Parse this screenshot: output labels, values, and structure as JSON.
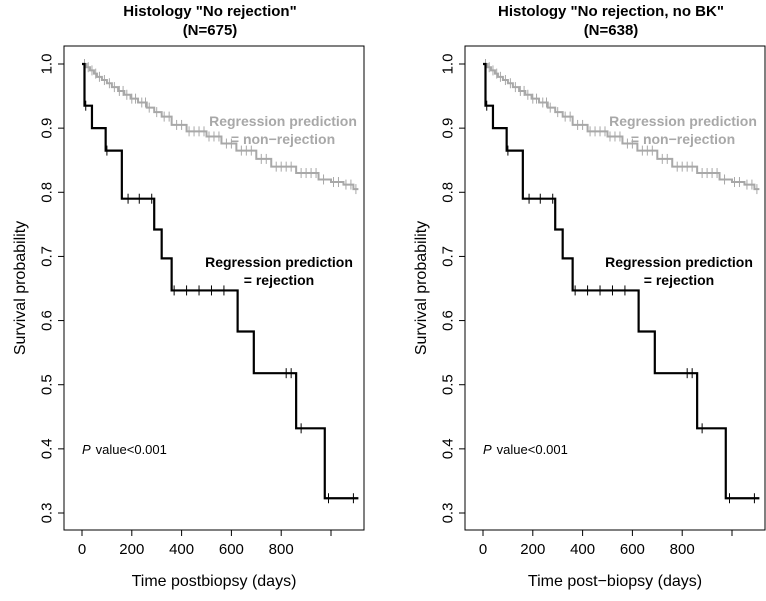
{
  "chart_data": [
    {
      "type": "line",
      "title": "Histology \"No rejection\"",
      "subtitle": "(N=675)",
      "xlabel": "Time postbiopsy (days)",
      "ylabel": "Survival probability",
      "xlim": [
        -20,
        1180
      ],
      "ylim": [
        0.28,
        1.02
      ],
      "x_ticks": [
        0,
        200,
        400,
        600,
        800,
        1000
      ],
      "x_tick_labels": [
        "0",
        "200",
        "400",
        "600",
        "800",
        ""
      ],
      "y_ticks": [
        0.3,
        0.4,
        0.5,
        0.6,
        0.7,
        0.8,
        0.9,
        1.0
      ],
      "y_tick_labels": [
        "0.3",
        "0.4",
        "0.5",
        "0.6",
        "0.7",
        "0.8",
        "0.9",
        "1.0"
      ],
      "annotations": {
        "non_rejection": [
          "Regression prediction",
          "= non−rejection"
        ],
        "rejection": [
          "Regression prediction",
          "= rejection"
        ],
        "p_italic": "P",
        "p_value": "value<0.001"
      },
      "series": [
        {
          "name": "Regression prediction = non-rejection",
          "color": "#a8a8a8",
          "step_times": [
            5,
            18,
            32,
            48,
            60,
            80,
            100,
            120,
            145,
            170,
            195,
            225,
            260,
            290,
            320,
            360,
            420,
            500,
            560,
            620,
            700,
            760,
            860,
            950,
            1000,
            1050,
            1090
          ],
          "step_values": [
            1.0,
            0.995,
            0.99,
            0.985,
            0.98,
            0.975,
            0.97,
            0.964,
            0.958,
            0.952,
            0.946,
            0.94,
            0.932,
            0.925,
            0.918,
            0.905,
            0.895,
            0.887,
            0.876,
            0.865,
            0.852,
            0.84,
            0.83,
            0.82,
            0.816,
            0.812,
            0.805
          ],
          "end_time": 1110,
          "censor_times": [
            10,
            25,
            40,
            55,
            70,
            90,
            110,
            130,
            150,
            165,
            180,
            200,
            215,
            240,
            255,
            270,
            300,
            330,
            350,
            380,
            400,
            430,
            450,
            470,
            490,
            510,
            530,
            550,
            580,
            600,
            640,
            660,
            680,
            720,
            740,
            780,
            800,
            820,
            840,
            880,
            900,
            920,
            940,
            970,
            1010,
            1030,
            1060,
            1080,
            1100
          ]
        },
        {
          "name": "Regression prediction = rejection",
          "color": "#000000",
          "step_times": [
            0,
            10,
            40,
            95,
            160,
            290,
            320,
            360,
            625,
            690,
            860,
            975
          ],
          "step_values": [
            1.0,
            0.935,
            0.9,
            0.865,
            0.79,
            0.742,
            0.697,
            0.647,
            0.583,
            0.518,
            0.432,
            0.323
          ],
          "end_time": 1110,
          "censor_times": [
            15,
            100,
            185,
            230,
            280,
            370,
            420,
            470,
            520,
            570,
            820,
            840,
            880,
            990,
            1090
          ]
        }
      ]
    },
    {
      "type": "line",
      "title": "Histology \"No rejection, no BK\"",
      "subtitle": "(N=638)",
      "xlabel": "Time post−biopsy (days)",
      "ylabel": "Survival probability",
      "xlim": [
        -20,
        1180
      ],
      "ylim": [
        0.28,
        1.02
      ],
      "x_ticks": [
        0,
        200,
        400,
        600,
        800,
        1000
      ],
      "x_tick_labels": [
        "0",
        "200",
        "400",
        "600",
        "800",
        ""
      ],
      "y_ticks": [
        0.3,
        0.4,
        0.5,
        0.6,
        0.7,
        0.8,
        0.9,
        1.0
      ],
      "y_tick_labels": [
        "0.3",
        "0.4",
        "0.5",
        "0.6",
        "0.7",
        "0.8",
        "0.9",
        "1.0"
      ],
      "annotations": {
        "non_rejection": [
          "Regression prediction",
          "= non−rejection"
        ],
        "rejection": [
          "Regression prediction",
          "= rejection"
        ],
        "p_italic": "P",
        "p_value": "value<0.001"
      },
      "series": [
        {
          "name": "Regression prediction = non-rejection",
          "color": "#a8a8a8",
          "step_times": [
            5,
            18,
            32,
            48,
            60,
            80,
            100,
            120,
            145,
            170,
            195,
            225,
            260,
            290,
            320,
            360,
            420,
            500,
            560,
            620,
            700,
            760,
            860,
            950,
            1000,
            1050,
            1090
          ],
          "step_values": [
            1.0,
            0.995,
            0.99,
            0.985,
            0.98,
            0.975,
            0.97,
            0.964,
            0.958,
            0.952,
            0.946,
            0.94,
            0.932,
            0.925,
            0.918,
            0.905,
            0.895,
            0.887,
            0.876,
            0.865,
            0.852,
            0.84,
            0.83,
            0.82,
            0.816,
            0.812,
            0.805
          ],
          "end_time": 1110,
          "censor_times": [
            10,
            25,
            40,
            55,
            70,
            90,
            110,
            130,
            150,
            165,
            180,
            200,
            215,
            240,
            255,
            270,
            300,
            330,
            350,
            380,
            400,
            430,
            450,
            470,
            490,
            510,
            530,
            550,
            580,
            600,
            640,
            660,
            680,
            720,
            740,
            780,
            800,
            820,
            840,
            880,
            900,
            920,
            940,
            970,
            1010,
            1030,
            1060,
            1080,
            1100
          ]
        },
        {
          "name": "Regression prediction = rejection",
          "color": "#000000",
          "step_times": [
            0,
            10,
            40,
            95,
            160,
            290,
            320,
            360,
            625,
            690,
            860,
            975
          ],
          "step_values": [
            1.0,
            0.935,
            0.9,
            0.865,
            0.79,
            0.742,
            0.697,
            0.647,
            0.583,
            0.518,
            0.432,
            0.323
          ],
          "end_time": 1110,
          "censor_times": [
            15,
            100,
            185,
            230,
            280,
            370,
            420,
            470,
            520,
            570,
            820,
            840,
            880,
            990,
            1090
          ]
        }
      ]
    }
  ]
}
